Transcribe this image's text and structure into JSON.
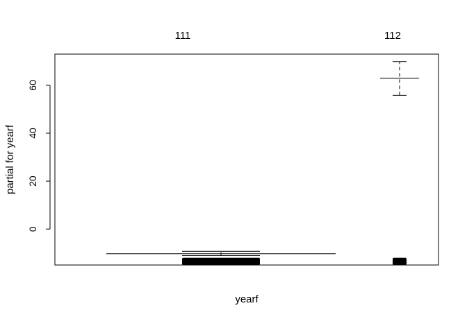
{
  "chart_data": {
    "type": "termplot",
    "categories": [
      "111",
      "112"
    ],
    "category_widths": [
      0.97,
      0.03
    ],
    "xlabel": "yearf",
    "ylabel": "partial for yearf",
    "ylim": [
      -15,
      73
    ],
    "yticks": [
      0,
      20,
      40,
      60
    ],
    "estimates": [
      -10.3,
      62.9
    ],
    "intervals": [
      {
        "category": "111",
        "lower": -11.1,
        "upper": -9.3
      },
      {
        "category": "112",
        "lower": 55.8,
        "upper": 69.9
      }
    ],
    "rug_band": [
      -15,
      -12
    ],
    "grid": false
  }
}
